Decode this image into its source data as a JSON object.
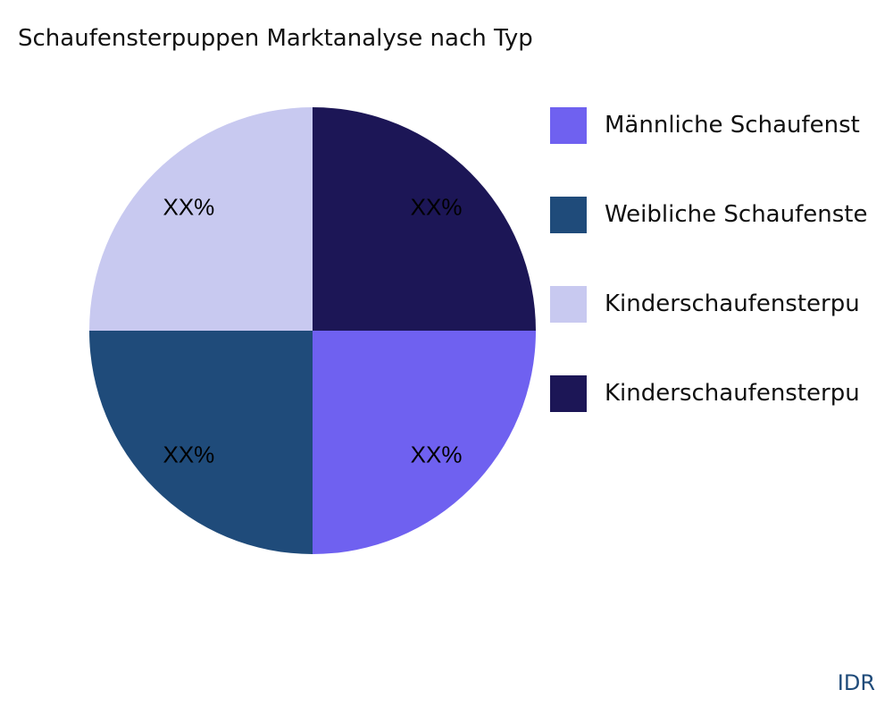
{
  "chart_data": {
    "type": "pie",
    "title": "Schaufensterpuppen Marktanalyse nach Typ",
    "slices": [
      {
        "name": "Männliche Schaufenst",
        "value": 25,
        "label": "XX%",
        "color": "#6f61f0"
      },
      {
        "name": "Weibliche Schaufenste",
        "value": 25,
        "label": "XX%",
        "color": "#1f4b7a"
      },
      {
        "name": "Kinderschaufensterpu",
        "value": 25,
        "label": "XX%",
        "color": "#c8c9f0"
      },
      {
        "name": "Kinderschaufensterpu",
        "value": 25,
        "label": "XX%",
        "color": "#1c1656"
      }
    ],
    "direction": "clockwise",
    "legend_position": "right"
  },
  "brand": "IDR"
}
